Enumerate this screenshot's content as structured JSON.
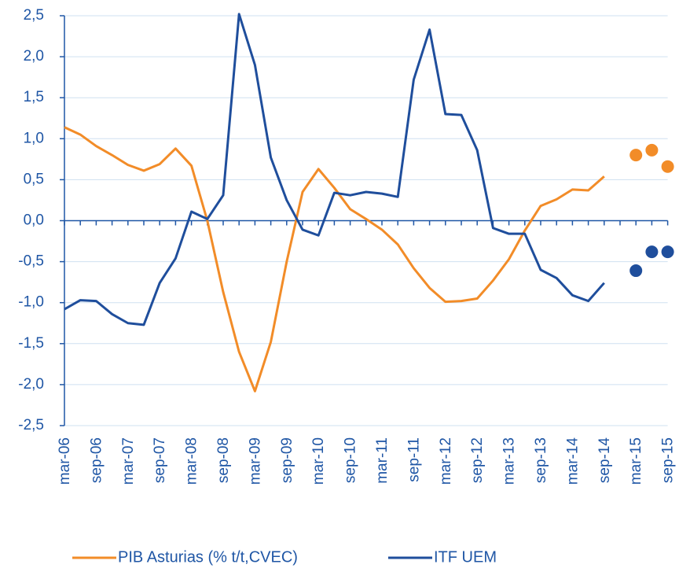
{
  "chart_data": {
    "type": "line",
    "categories": [
      "mar-06",
      null,
      "sep-06",
      null,
      "mar-07",
      null,
      "sep-07",
      null,
      "mar-08",
      null,
      "sep-08",
      null,
      "mar-09",
      null,
      "sep-09",
      null,
      "mar-10",
      null,
      "sep-10",
      null,
      "mar-11",
      null,
      "sep-11",
      null,
      "mar-12",
      null,
      "sep-12",
      null,
      "mar-13",
      null,
      "sep-13",
      null,
      "mar-14",
      null,
      "sep-14",
      null,
      "mar-15",
      null,
      "sep-15"
    ],
    "series": [
      {
        "name": "PIB Asturias (% t/t,CVEC)",
        "color": "#f28c28",
        "values": [
          1.14,
          1.05,
          0.91,
          0.8,
          0.68,
          0.61,
          0.69,
          0.88,
          0.67,
          0.0,
          -0.87,
          -1.6,
          -2.08,
          -1.48,
          -0.5,
          0.35,
          0.63,
          0.4,
          0.14,
          0.02,
          -0.11,
          -0.29,
          -0.58,
          -0.82,
          -0.99,
          -0.98,
          -0.95,
          -0.73,
          -0.47,
          -0.12,
          0.18,
          0.26,
          0.38,
          0.37,
          0.54,
          null,
          null,
          null,
          null
        ],
        "forecast": [
          null,
          null,
          null,
          null,
          null,
          null,
          null,
          null,
          null,
          null,
          null,
          null,
          null,
          null,
          null,
          null,
          null,
          null,
          null,
          null,
          null,
          null,
          null,
          null,
          null,
          null,
          null,
          null,
          null,
          null,
          null,
          null,
          null,
          null,
          null,
          null,
          0.8,
          0.86,
          0.66
        ]
      },
      {
        "name": "ITF UEM",
        "color": "#1f4e9c",
        "values": [
          -1.08,
          -0.97,
          -0.98,
          -1.14,
          -1.25,
          -1.27,
          -0.76,
          -0.46,
          0.11,
          0.02,
          0.31,
          2.52,
          1.9,
          0.77,
          0.25,
          -0.11,
          -0.18,
          0.34,
          0.31,
          0.35,
          0.33,
          0.29,
          1.72,
          2.33,
          1.3,
          1.29,
          0.86,
          -0.09,
          -0.16,
          -0.16,
          -0.6,
          -0.7,
          -0.91,
          -0.98,
          -0.76,
          null,
          null,
          null,
          null
        ],
        "forecast": [
          null,
          null,
          null,
          null,
          null,
          null,
          null,
          null,
          null,
          null,
          null,
          null,
          null,
          null,
          null,
          null,
          null,
          null,
          null,
          null,
          null,
          null,
          null,
          null,
          null,
          null,
          null,
          null,
          null,
          null,
          null,
          null,
          null,
          null,
          null,
          null,
          -0.61,
          -0.38,
          -0.38
        ]
      }
    ],
    "ylim": [
      -2.5,
      2.5
    ],
    "yticks": [
      {
        "value": -2.5,
        "label": "-2,5"
      },
      {
        "value": -2,
        "label": "-2,0"
      },
      {
        "value": -1.5,
        "label": "-1,5"
      },
      {
        "value": -1,
        "label": "-1,0"
      },
      {
        "value": -0.5,
        "label": "-0,5"
      },
      {
        "value": 0,
        "label": "0,0"
      },
      {
        "value": 0.5,
        "label": "0,5"
      },
      {
        "value": 1,
        "label": "1,0"
      },
      {
        "value": 1.5,
        "label": "1,5"
      },
      {
        "value": 2,
        "label": "2,0"
      },
      {
        "value": 2.5,
        "label": "2,5"
      }
    ],
    "grid": true,
    "legend": "bottom"
  }
}
